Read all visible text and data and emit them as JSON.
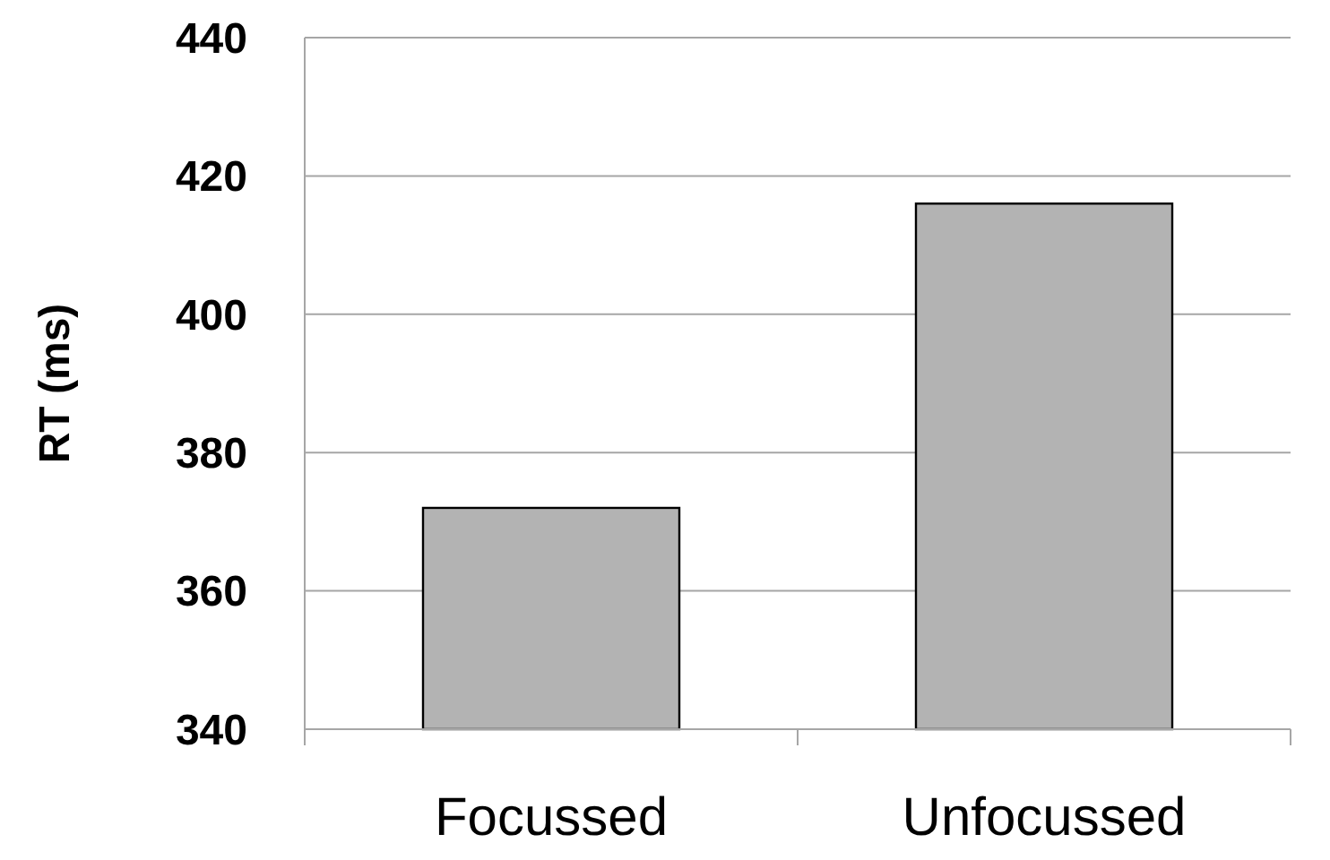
{
  "chart_data": {
    "type": "bar",
    "ylabel": "RT (ms)",
    "categories": [
      "Focussed",
      "Unfocussed"
    ],
    "values": [
      372,
      416
    ],
    "color": "#b3b3b3",
    "ylim": [
      340,
      440
    ],
    "yticks": [
      340,
      360,
      380,
      400,
      420,
      440
    ],
    "grid": "y"
  }
}
